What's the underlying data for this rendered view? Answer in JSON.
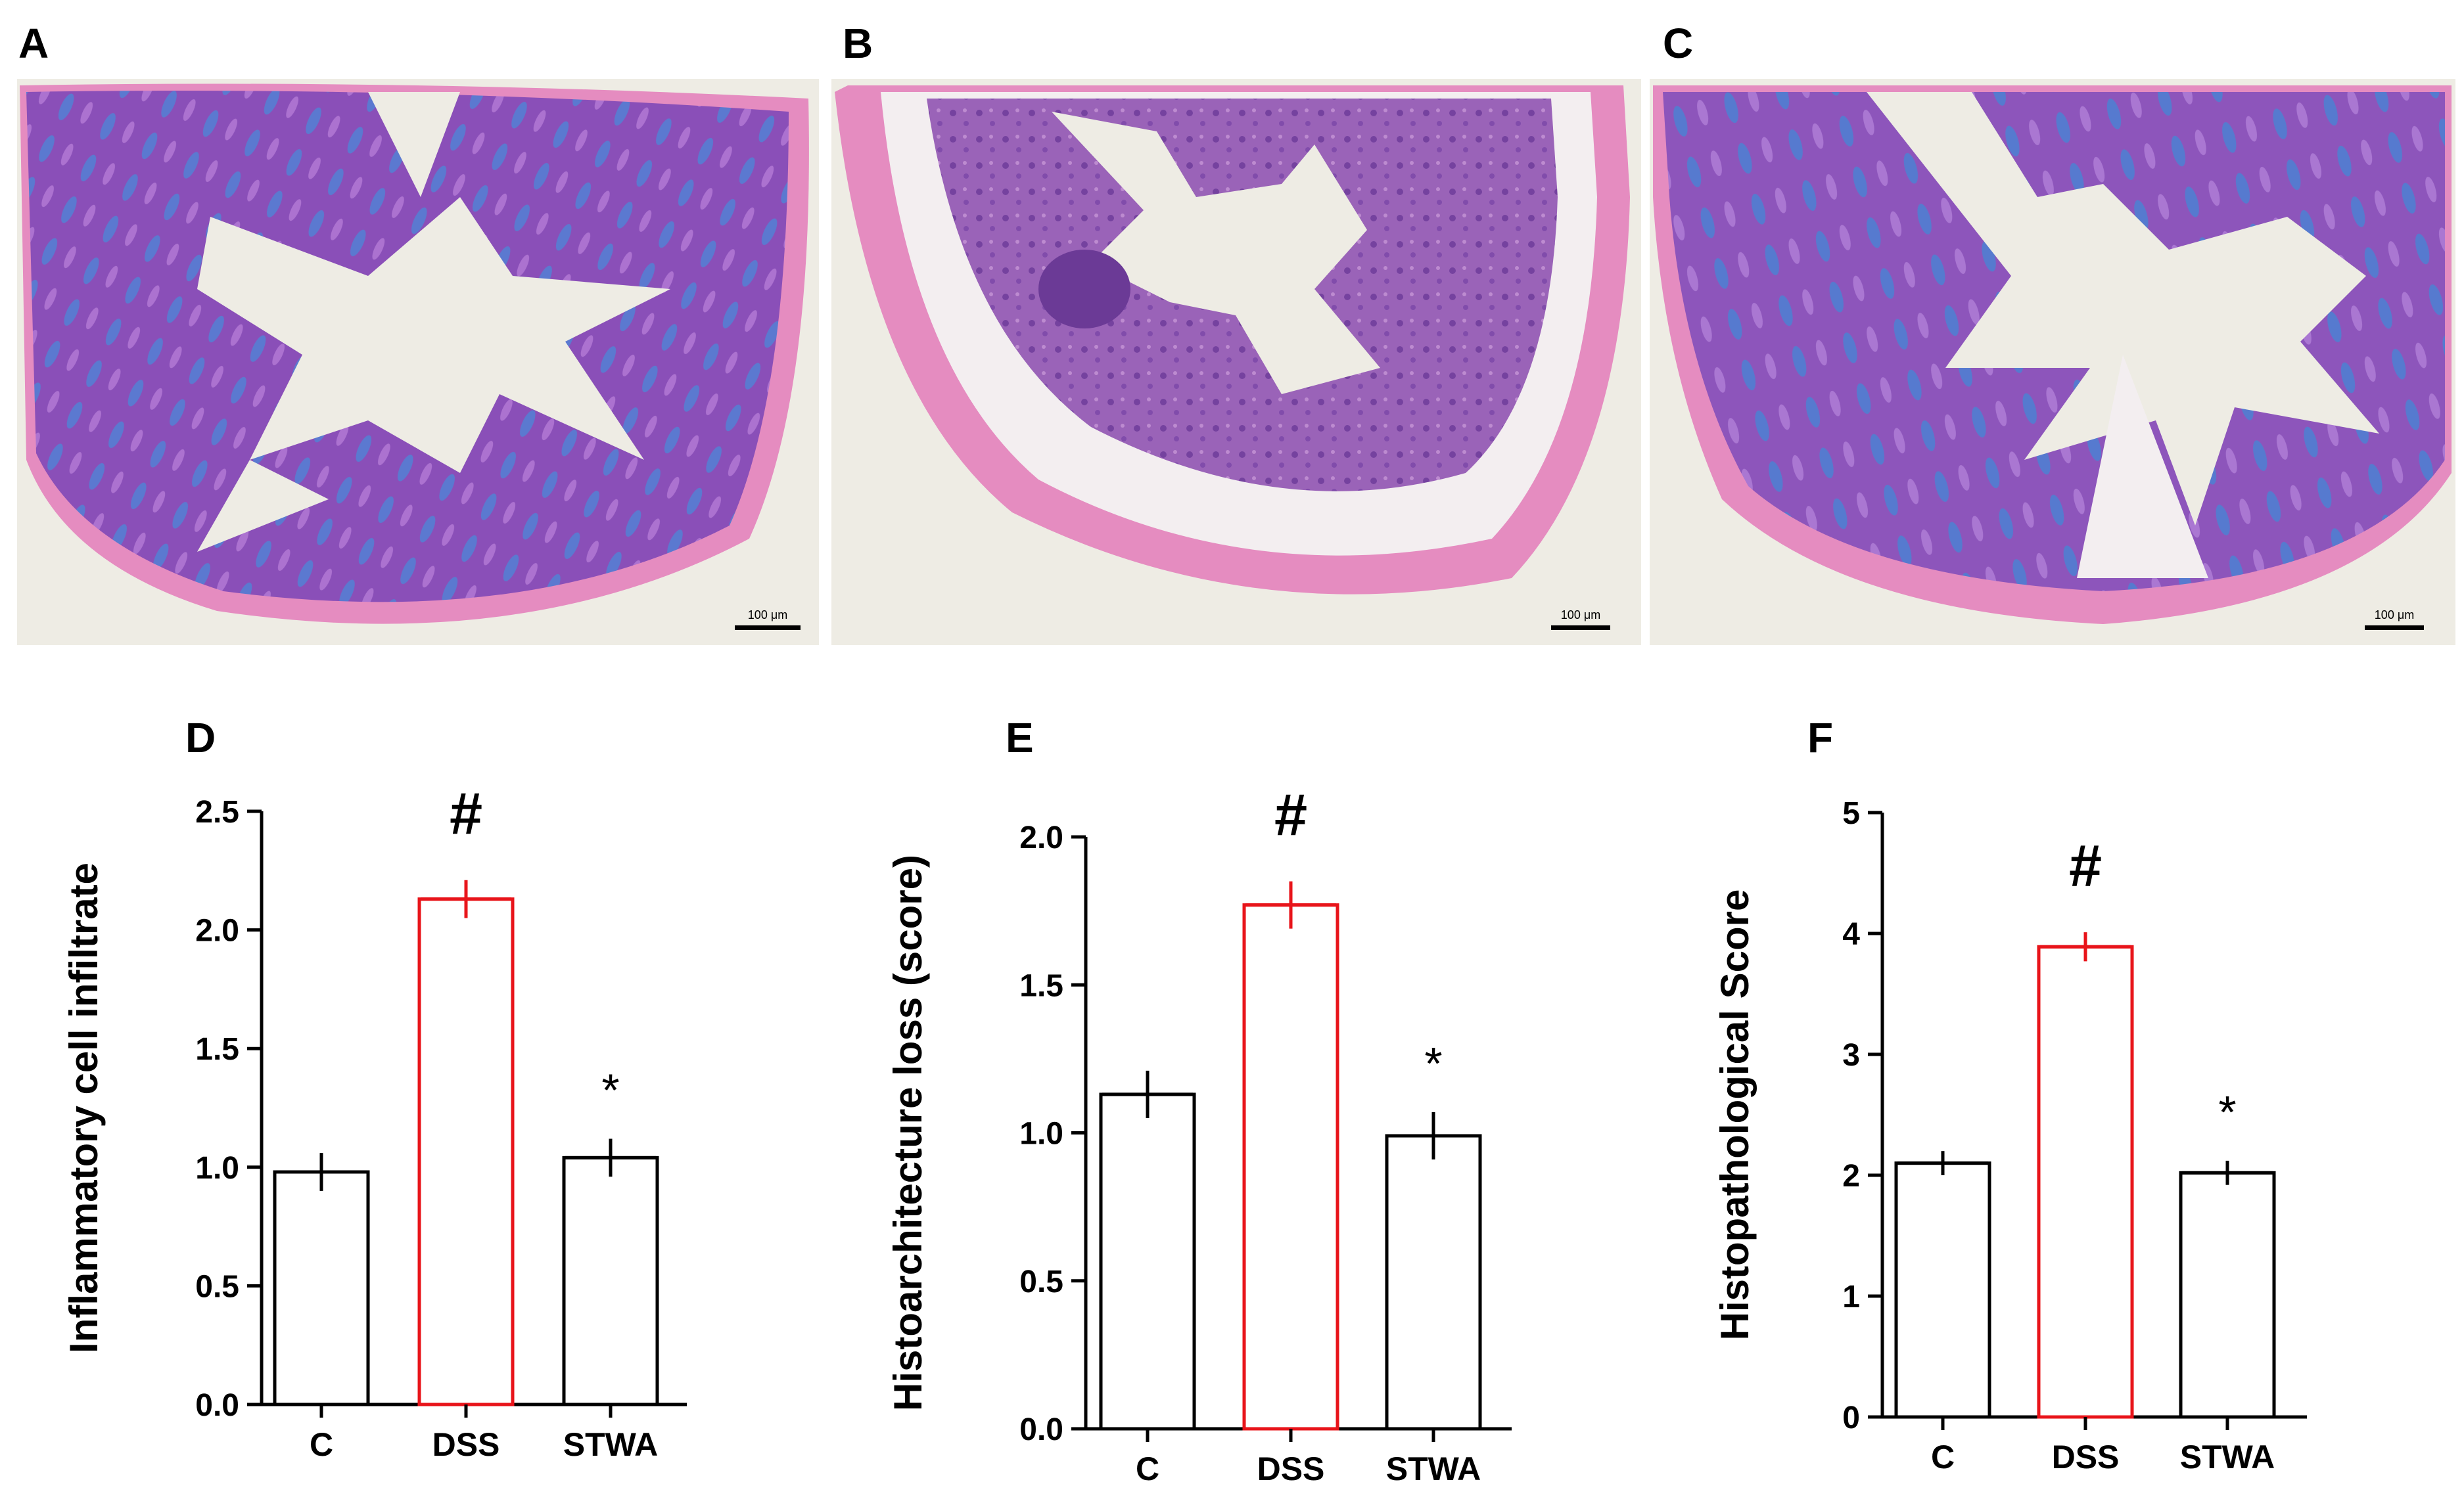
{
  "panels": {
    "A": {
      "letter": "A",
      "scale_label": "100 μm"
    },
    "B": {
      "letter": "B",
      "scale_label": "100 μm"
    },
    "C": {
      "letter": "C",
      "scale_label": "100 μm"
    }
  },
  "colors": {
    "tissue_pink": "#e58cc0",
    "tissue_purple": "#8a4fb8",
    "mucin_blue": "#3a7fd6",
    "background": "#eeece4",
    "bar_black": "#000000",
    "bar_red": "#e8141a"
  },
  "chart_data": [
    {
      "type": "bar",
      "letter": "D",
      "ylabel": "Inflammatory cell infiltrate",
      "categories": [
        "C",
        "DSS",
        "STWA"
      ],
      "values": [
        0.98,
        2.13,
        1.04
      ],
      "errors": [
        0.08,
        0.08,
        0.08
      ],
      "bar_colors": [
        "#000000",
        "#e8141a",
        "#000000"
      ],
      "annotations": [
        "",
        "#",
        "*"
      ],
      "ylim": [
        0,
        2.5
      ],
      "ticks": [
        0.0,
        0.5,
        1.0,
        1.5,
        2.0,
        2.5
      ],
      "tick_labels": [
        "0.0",
        "0.5",
        "1.0",
        "1.5",
        "2.0",
        "2.5"
      ]
    },
    {
      "type": "bar",
      "letter": "E",
      "ylabel": "Histoarchitecture loss (score)",
      "categories": [
        "C",
        "DSS",
        "STWA"
      ],
      "values": [
        1.13,
        1.77,
        0.99
      ],
      "errors": [
        0.08,
        0.08,
        0.08
      ],
      "bar_colors": [
        "#000000",
        "#e8141a",
        "#000000"
      ],
      "annotations": [
        "",
        "#",
        "*"
      ],
      "ylim": [
        0,
        2.0
      ],
      "ticks": [
        0.0,
        0.5,
        1.0,
        1.5,
        2.0
      ],
      "tick_labels": [
        "0.0",
        "0.5",
        "1.0",
        "1.5",
        "2.0"
      ]
    },
    {
      "type": "bar",
      "letter": "F",
      "ylabel": "Histopathological Score",
      "categories": [
        "C",
        "DSS",
        "STWA"
      ],
      "values": [
        2.1,
        3.89,
        2.02
      ],
      "errors": [
        0.1,
        0.12,
        0.1
      ],
      "bar_colors": [
        "#000000",
        "#e8141a",
        "#000000"
      ],
      "annotations": [
        "",
        "#",
        "*"
      ],
      "ylim": [
        0,
        5
      ],
      "ticks": [
        0,
        1,
        2,
        3,
        4,
        5
      ],
      "tick_labels": [
        "0",
        "1",
        "2",
        "3",
        "4",
        "5"
      ]
    }
  ]
}
